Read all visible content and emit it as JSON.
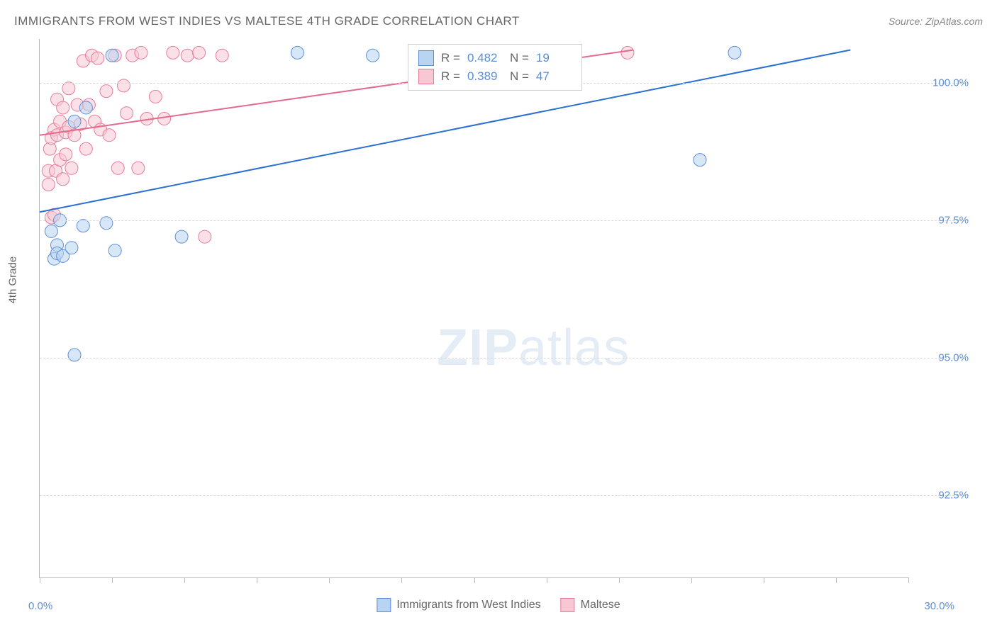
{
  "title": "IMMIGRANTS FROM WEST INDIES VS MALTESE 4TH GRADE CORRELATION CHART",
  "source": "Source: ZipAtlas.com",
  "watermark_bold": "ZIP",
  "watermark_light": "atlas",
  "chart": {
    "type": "scatter-with-trend",
    "ylabel": "4th Grade",
    "xlim": [
      0.0,
      30.0
    ],
    "ylim": [
      91.0,
      100.8
    ],
    "xtick_positions": [
      0.0,
      2.5,
      5.0,
      7.5,
      10.0,
      12.5,
      15.0,
      17.5,
      20.0,
      22.5,
      25.0,
      27.5,
      30.0
    ],
    "ytick_positions": [
      92.5,
      95.0,
      97.5,
      100.0
    ],
    "ytick_labels": [
      "92.5%",
      "95.0%",
      "97.5%",
      "100.0%"
    ],
    "xmin_label": "0.0%",
    "xmax_label": "30.0%",
    "grid_color": "#d8d8d8",
    "axis_color": "#bbbbbb",
    "background_color": "#ffffff",
    "marker_radius": 9,
    "marker_opacity": 0.55,
    "line_width": 2,
    "series": [
      {
        "name": "Immigrants from West Indies",
        "color_fill": "#b8d4f0",
        "color_stroke": "#5a8fd6",
        "line_color": "#2a6fd6",
        "R": "0.482",
        "N": "19",
        "trend": {
          "x1": 0.0,
          "y1": 97.65,
          "x2": 28.0,
          "y2": 100.6
        },
        "points": [
          [
            0.4,
            97.3
          ],
          [
            0.5,
            96.8
          ],
          [
            0.6,
            97.05
          ],
          [
            0.6,
            96.9
          ],
          [
            0.7,
            97.5
          ],
          [
            0.8,
            96.85
          ],
          [
            1.1,
            97.0
          ],
          [
            1.5,
            97.4
          ],
          [
            2.3,
            97.45
          ],
          [
            2.6,
            96.95
          ],
          [
            1.2,
            95.05
          ],
          [
            1.2,
            99.3
          ],
          [
            1.6,
            99.55
          ],
          [
            2.5,
            100.5
          ],
          [
            4.9,
            97.2
          ],
          [
            8.9,
            100.55
          ],
          [
            11.5,
            100.5
          ],
          [
            22.8,
            98.6
          ],
          [
            24.0,
            100.55
          ]
        ]
      },
      {
        "name": "Maltese",
        "color_fill": "#f7c8d4",
        "color_stroke": "#e97a9a",
        "line_color": "#e36a8c",
        "R": "0.389",
        "N": "47",
        "trend": {
          "x1": 0.0,
          "y1": 99.05,
          "x2": 20.5,
          "y2": 100.6
        },
        "points": [
          [
            0.3,
            98.15
          ],
          [
            0.3,
            98.4
          ],
          [
            0.35,
            98.8
          ],
          [
            0.4,
            97.55
          ],
          [
            0.4,
            99.0
          ],
          [
            0.5,
            97.6
          ],
          [
            0.5,
            99.15
          ],
          [
            0.55,
            98.4
          ],
          [
            0.6,
            99.05
          ],
          [
            0.6,
            99.7
          ],
          [
            0.7,
            98.6
          ],
          [
            0.7,
            99.3
          ],
          [
            0.8,
            98.25
          ],
          [
            0.8,
            99.55
          ],
          [
            0.9,
            98.7
          ],
          [
            0.9,
            99.1
          ],
          [
            1.0,
            99.2
          ],
          [
            1.0,
            99.9
          ],
          [
            1.1,
            98.45
          ],
          [
            1.2,
            99.05
          ],
          [
            1.3,
            99.6
          ],
          [
            1.4,
            99.25
          ],
          [
            1.5,
            100.4
          ],
          [
            1.6,
            98.8
          ],
          [
            1.7,
            99.6
          ],
          [
            1.8,
            100.5
          ],
          [
            1.9,
            99.3
          ],
          [
            2.0,
            100.45
          ],
          [
            2.1,
            99.15
          ],
          [
            2.3,
            99.85
          ],
          [
            2.4,
            99.05
          ],
          [
            2.6,
            100.5
          ],
          [
            2.7,
            98.45
          ],
          [
            2.9,
            99.95
          ],
          [
            3.0,
            99.45
          ],
          [
            3.2,
            100.5
          ],
          [
            3.4,
            98.45
          ],
          [
            3.5,
            100.55
          ],
          [
            3.7,
            99.35
          ],
          [
            4.0,
            99.75
          ],
          [
            4.3,
            99.35
          ],
          [
            4.6,
            100.55
          ],
          [
            5.1,
            100.5
          ],
          [
            5.5,
            100.55
          ],
          [
            5.7,
            97.2
          ],
          [
            6.3,
            100.5
          ],
          [
            20.3,
            100.55
          ]
        ]
      }
    ]
  },
  "legend_bottom": [
    {
      "swatch_fill": "#b8d4f0",
      "swatch_stroke": "#5a8fd6",
      "label": "Immigrants from West Indies"
    },
    {
      "swatch_fill": "#f7c8d4",
      "swatch_stroke": "#e97a9a",
      "label": "Maltese"
    }
  ]
}
